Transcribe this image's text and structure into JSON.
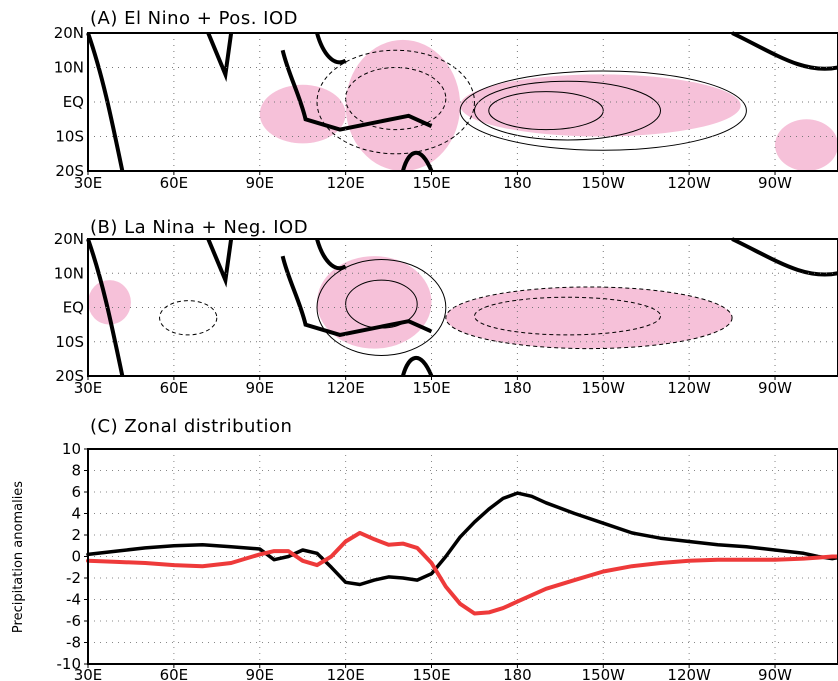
{
  "chart_data": [
    {
      "type": "heatmap",
      "panel": "A",
      "title": "(A) El Nino + Pos. IOD",
      "x_ticks": [
        "30E",
        "60E",
        "90E",
        "120E",
        "150E",
        "180",
        "150W",
        "120W",
        "90W"
      ],
      "y_ticks": [
        "20N",
        "10N",
        "EQ",
        "10S",
        "20S"
      ],
      "xlim": [
        30,
        292
      ],
      "ylim": [
        -20,
        20
      ],
      "grid": true,
      "shading_color": "#f4b6d2",
      "contour_color": "#000000",
      "shaded_regions": [
        {
          "lon": [
            120,
            160
          ],
          "lat": [
            -20,
            18
          ]
        },
        {
          "lon": [
            90,
            120
          ],
          "lat": [
            -12,
            5
          ]
        },
        {
          "lon": [
            160,
            258
          ],
          "lat": [
            -10,
            8
          ]
        },
        {
          "lon": [
            270,
            292
          ],
          "lat": [
            -20,
            -5
          ]
        }
      ],
      "positive_contours": [
        {
          "lon": [
            160,
            260
          ],
          "lat": [
            -14,
            9
          ]
        },
        {
          "lon": [
            165,
            230
          ],
          "lat": [
            -11,
            6
          ]
        },
        {
          "lon": [
            170,
            210
          ],
          "lat": [
            -8,
            3
          ]
        }
      ],
      "negative_contours": [
        {
          "lon": [
            110,
            165
          ],
          "lat": [
            -15,
            15
          ]
        },
        {
          "lon": [
            120,
            155
          ],
          "lat": [
            -8,
            10
          ]
        }
      ]
    },
    {
      "type": "heatmap",
      "panel": "B",
      "title": "(B) La Nina + Neg. IOD",
      "x_ticks": [
        "30E",
        "60E",
        "90E",
        "120E",
        "150E",
        "180",
        "150W",
        "120W",
        "90W"
      ],
      "y_ticks": [
        "20N",
        "10N",
        "EQ",
        "10S",
        "20S"
      ],
      "xlim": [
        30,
        292
      ],
      "ylim": [
        -20,
        20
      ],
      "grid": true,
      "shading_color": "#f4b6d2",
      "contour_color": "#000000",
      "shaded_regions": [
        {
          "lon": [
            110,
            150
          ],
          "lat": [
            -12,
            15
          ]
        },
        {
          "lon": [
            155,
            255
          ],
          "lat": [
            -12,
            6
          ]
        },
        {
          "lon": [
            30,
            45
          ],
          "lat": [
            -5,
            8
          ]
        }
      ],
      "positive_contours": [
        {
          "lon": [
            110,
            155
          ],
          "lat": [
            -14,
            14
          ]
        },
        {
          "lon": [
            120,
            145
          ],
          "lat": [
            -6,
            8
          ]
        }
      ],
      "negative_contours": [
        {
          "lon": [
            155,
            255
          ],
          "lat": [
            -12,
            6
          ]
        },
        {
          "lon": [
            165,
            230
          ],
          "lat": [
            -8,
            3
          ]
        },
        {
          "lon": [
            55,
            75
          ],
          "lat": [
            -8,
            2
          ]
        }
      ]
    },
    {
      "type": "line",
      "panel": "C",
      "title": "(C) Zonal distribution",
      "ylabel": "Precipitation anomalies",
      "x_ticks": [
        "30E",
        "60E",
        "90E",
        "120E",
        "150E",
        "180",
        "150W",
        "120W",
        "90W"
      ],
      "ylim": [
        -10,
        10
      ],
      "y_ticks": [
        10,
        8,
        6,
        4,
        2,
        0,
        -2,
        -4,
        -6,
        -8,
        -10
      ],
      "xlim": [
        30,
        292
      ],
      "grid": true,
      "series": [
        {
          "color": "#000000",
          "x": [
            30,
            40,
            50,
            60,
            70,
            80,
            90,
            95,
            100,
            105,
            110,
            115,
            120,
            125,
            130,
            135,
            140,
            145,
            150,
            155,
            160,
            165,
            170,
            175,
            180,
            185,
            190,
            200,
            210,
            220,
            230,
            240,
            250,
            260,
            270,
            280,
            285,
            290,
            292
          ],
          "y": [
            0.2,
            0.5,
            0.8,
            1.0,
            1.1,
            0.9,
            0.7,
            -0.3,
            0.0,
            0.6,
            0.3,
            -1.0,
            -2.4,
            -2.6,
            -2.2,
            -1.9,
            -2.0,
            -2.2,
            -1.6,
            0.0,
            1.8,
            3.2,
            4.4,
            5.4,
            5.9,
            5.6,
            5.0,
            4.0,
            3.1,
            2.2,
            1.7,
            1.4,
            1.1,
            0.9,
            0.6,
            0.3,
            0.0,
            -0.2,
            -0.1
          ]
        },
        {
          "color": "#ee3a3a",
          "x": [
            30,
            40,
            50,
            60,
            70,
            80,
            90,
            95,
            100,
            105,
            110,
            115,
            120,
            125,
            130,
            135,
            140,
            145,
            150,
            155,
            160,
            165,
            170,
            175,
            180,
            185,
            190,
            200,
            210,
            220,
            230,
            240,
            250,
            260,
            270,
            280,
            285,
            290,
            292
          ],
          "y": [
            -0.4,
            -0.5,
            -0.6,
            -0.8,
            -0.9,
            -0.6,
            0.2,
            0.5,
            0.5,
            -0.4,
            -0.8,
            0.0,
            1.4,
            2.2,
            1.6,
            1.1,
            1.2,
            0.8,
            -0.6,
            -2.8,
            -4.4,
            -5.3,
            -5.2,
            -4.8,
            -4.2,
            -3.6,
            -3.0,
            -2.2,
            -1.4,
            -0.9,
            -0.6,
            -0.4,
            -0.3,
            -0.3,
            -0.3,
            -0.2,
            -0.1,
            0.0,
            0.0
          ]
        }
      ]
    }
  ]
}
